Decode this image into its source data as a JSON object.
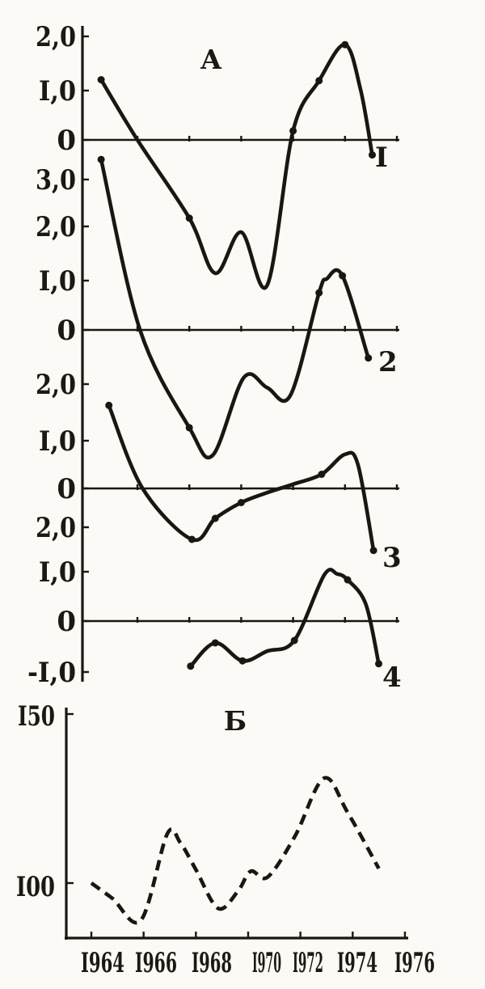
{
  "figure": {
    "background_color": "#fbfaf6",
    "ink_color": "#1a1611",
    "decimal_separator": "comma",
    "digit_one_glyph": "I"
  },
  "chart_data": [
    {
      "type": "line",
      "panel_label": "A",
      "style": "solid",
      "markers": true,
      "x_unit": "year",
      "x_range": [
        1964,
        1976
      ],
      "x_tick_years": [
        1966,
        1968,
        1970,
        1972,
        1974,
        1976
      ],
      "note": "Four stacked curves sharing one x-axis; each curve has its own zero baseline. Points are [year, value, has_marker_dot].",
      "series": [
        {
          "label": "I",
          "y_axis_labels": [
            "2,0",
            "I,0",
            "0"
          ],
          "points": [
            [
              1964.6,
              1.2,
              1
            ],
            [
              1966,
              0,
              0
            ],
            [
              1968,
              -1.56,
              1
            ],
            [
              1969,
              -2.66,
              0
            ],
            [
              1970,
              -1.84,
              0
            ],
            [
              1971,
              -2.9,
              0
            ],
            [
              1972,
              0.18,
              1
            ],
            [
              1973,
              1.18,
              1
            ],
            [
              1974,
              1.9,
              1
            ],
            [
              1974.6,
              1.0,
              0
            ],
            [
              1975.05,
              -0.3,
              1
            ]
          ]
        },
        {
          "label": "2",
          "y_axis_labels": [
            "3,0",
            "2,0",
            "I,0",
            "0"
          ],
          "points": [
            [
              1964.6,
              3.4,
              1
            ],
            [
              1966.1,
              0,
              0
            ],
            [
              1968,
              -1.95,
              1
            ],
            [
              1968.9,
              -2.5,
              0
            ],
            [
              1970.1,
              -0.95,
              0
            ],
            [
              1971,
              -1.15,
              0
            ],
            [
              1971.9,
              -1.3,
              0
            ],
            [
              1973.0,
              0.74,
              1
            ],
            [
              1973.3,
              1.02,
              0
            ],
            [
              1973.9,
              1.08,
              1
            ],
            [
              1974.9,
              -0.56,
              1
            ]
          ]
        },
        {
          "label": "3",
          "y_axis_labels": [
            "2,0",
            "I,0",
            "0"
          ],
          "points": [
            [
              1964.9,
              1.58,
              1
            ],
            [
              1966.2,
              0,
              0
            ],
            [
              1968.1,
              -0.97,
              1
            ],
            [
              1969,
              -0.57,
              1
            ],
            [
              1970,
              -0.27,
              1
            ],
            [
              1971,
              -0.08,
              0
            ],
            [
              1972,
              0.08,
              0
            ],
            [
              1973.1,
              0.27,
              1
            ],
            [
              1974,
              0.65,
              0
            ],
            [
              1974.5,
              0.45,
              0
            ],
            [
              1975.1,
              -1.18,
              1
            ]
          ]
        },
        {
          "label": "4",
          "y_axis_labels": [
            "2,0",
            "I,0",
            "0",
            "-I,0"
          ],
          "points": [
            [
              1968.05,
              -0.93,
              1
            ],
            [
              1969,
              -0.45,
              1
            ],
            [
              1970.05,
              -0.82,
              1
            ],
            [
              1971,
              -0.62,
              0
            ],
            [
              1972.05,
              -0.4,
              1
            ],
            [
              1973.2,
              0.95,
              0
            ],
            [
              1973.7,
              0.97,
              0
            ],
            [
              1974.1,
              0.85,
              1
            ],
            [
              1974.8,
              0.35,
              0
            ],
            [
              1975.3,
              -0.88,
              1
            ]
          ]
        }
      ]
    },
    {
      "type": "line",
      "panel_label": "Б",
      "style": "dashed",
      "markers": false,
      "x_unit": "year",
      "x_range": [
        1964,
        1976
      ],
      "y_axis_labels": [
        "I50",
        "I00"
      ],
      "y_axis_values": [
        150,
        100
      ],
      "x_tick_years": [
        1964,
        1966,
        1968,
        1970,
        1972,
        1974,
        1976
      ],
      "x_tick_labels": [
        "I964",
        "I966",
        "I968",
        "I970",
        "I972",
        "I974",
        "I976"
      ],
      "points": [
        [
          1964,
          100
        ],
        [
          1964.8,
          95.5
        ],
        [
          1965.9,
          89
        ],
        [
          1966.9,
          114.5
        ],
        [
          1967.4,
          112
        ],
        [
          1968,
          104
        ],
        [
          1968.85,
          92.5
        ],
        [
          1969.6,
          97.5
        ],
        [
          1970.1,
          103.5
        ],
        [
          1970.75,
          101.8
        ],
        [
          1971.8,
          114
        ],
        [
          1972.9,
          131
        ],
        [
          1973.8,
          121
        ],
        [
          1975,
          104.3
        ]
      ]
    }
  ]
}
